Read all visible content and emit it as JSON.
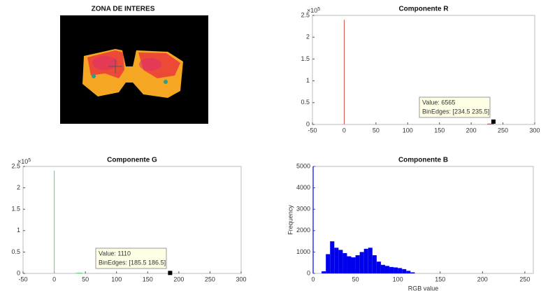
{
  "image": {
    "title": "ZONA DE INTERES"
  },
  "chart_data": [
    {
      "type": "histogram",
      "title": "Componente R",
      "color": "#d9534f",
      "yexp_base": "×10",
      "yexp": "5",
      "bins": [
        -0.5,
        0.5,
        225.5,
        234.5,
        235.5
      ],
      "values": [
        240000,
        0,
        2000,
        6565
      ],
      "xlim": [
        -50,
        300
      ],
      "xticks": [
        -50,
        0,
        50,
        100,
        150,
        200,
        250,
        300
      ],
      "ylim": [
        0,
        250000
      ],
      "yticks": [
        0,
        {
          "value": 50000,
          "label": "0.5"
        },
        {
          "value": 100000,
          "label": "1"
        },
        {
          "value": 150000,
          "label": "1.5"
        },
        {
          "value": 200000,
          "label": "2"
        },
        {
          "value": 250000,
          "label": "2.5"
        }
      ],
      "annotations": [
        "Value: 6565",
        "BinEdges: [234.5 235.5]"
      ]
    },
    {
      "type": "histogram",
      "title": "Componente G",
      "color": "#5cd65c",
      "yexp_base": "×10",
      "yexp": "5",
      "bins": [
        -0.5,
        0.5,
        35.5,
        45.5,
        185.5,
        186.5
      ],
      "values": [
        240000,
        0,
        1500,
        0,
        1110
      ],
      "xlim": [
        -50,
        300
      ],
      "xticks": [
        -50,
        0,
        50,
        100,
        150,
        200,
        250,
        300
      ],
      "ylim": [
        0,
        250000
      ],
      "yticks": [
        0,
        {
          "value": 50000,
          "label": "0.5"
        },
        {
          "value": 100000,
          "label": "1"
        },
        {
          "value": 150000,
          "label": "1.5"
        },
        {
          "value": 200000,
          "label": "2"
        },
        {
          "value": 250000,
          "label": "2.5"
        }
      ],
      "annotations": [
        "Value: 1110",
        "BinEdges: [185.5 186.5]"
      ]
    },
    {
      "type": "histogram",
      "title": "Componente B",
      "color": "#0000ee",
      "xlabel": "RGB value",
      "ylabel": "Frequency",
      "bins": [
        -0.5,
        0.5,
        10,
        15,
        20,
        25,
        30,
        35,
        40,
        45,
        50,
        55,
        60,
        65,
        70,
        75,
        80,
        85,
        90,
        95,
        100,
        105,
        110,
        115,
        120
      ],
      "values": [
        5000,
        0,
        100,
        900,
        1500,
        1200,
        1100,
        950,
        800,
        750,
        850,
        1000,
        1150,
        1200,
        850,
        550,
        400,
        350,
        300,
        280,
        250,
        200,
        120,
        50
      ],
      "xlim": [
        0,
        260
      ],
      "xticks": [
        0,
        50,
        100,
        150,
        200,
        250
      ],
      "ylim": [
        0,
        5000
      ],
      "yticks": [
        0,
        1000,
        2000,
        3000,
        4000,
        5000
      ]
    }
  ]
}
